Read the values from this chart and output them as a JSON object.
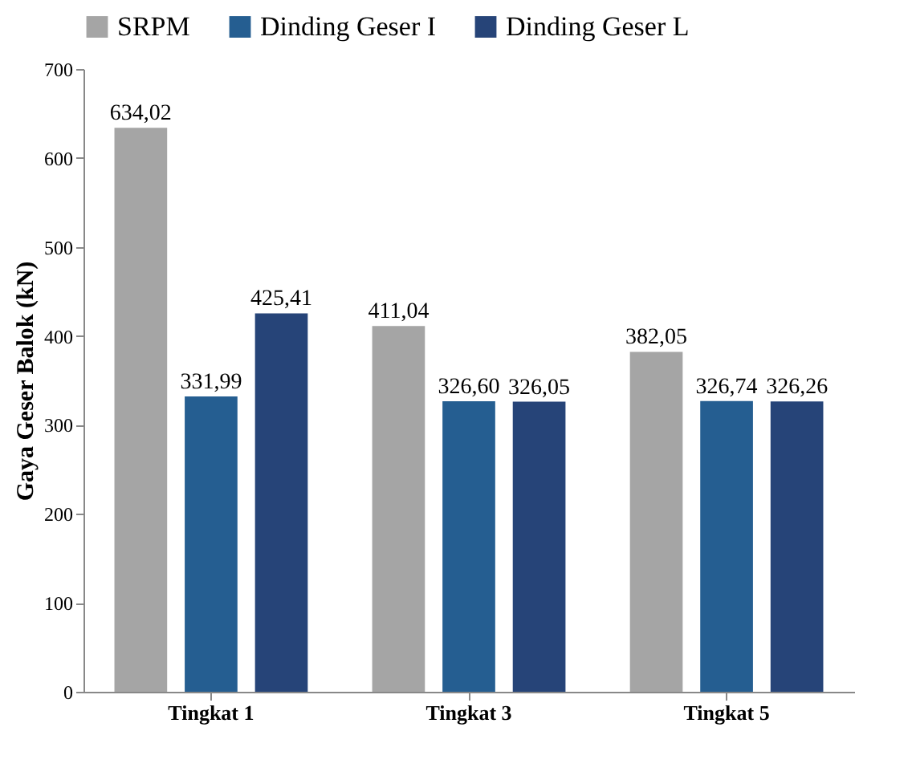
{
  "chart_data": {
    "type": "bar",
    "ylabel": "Gaya Geser Balok (kN)",
    "categories": [
      "Tingkat 1",
      "Tingkat 3",
      "Tingkat 5"
    ],
    "series": [
      {
        "name": "SRPM",
        "color": "#a5a5a5",
        "values": [
          634.02,
          411.04,
          382.05
        ],
        "value_labels": [
          "634,02",
          "411,04",
          "382,05"
        ]
      },
      {
        "name": "Dinding Geser I",
        "color": "#255e91",
        "values": [
          331.99,
          326.6,
          326.74
        ],
        "value_labels": [
          "331,99",
          "326,60",
          "326,74"
        ]
      },
      {
        "name": "Dinding Geser L",
        "color": "#264478",
        "values": [
          425.41,
          326.05,
          326.26
        ],
        "value_labels": [
          "425,41",
          "326,05",
          "326,26"
        ]
      }
    ],
    "ylim": [
      0,
      700
    ],
    "yticks": [
      0,
      100,
      200,
      300,
      400,
      500,
      600,
      700
    ],
    "grid": false,
    "legend": "top"
  }
}
